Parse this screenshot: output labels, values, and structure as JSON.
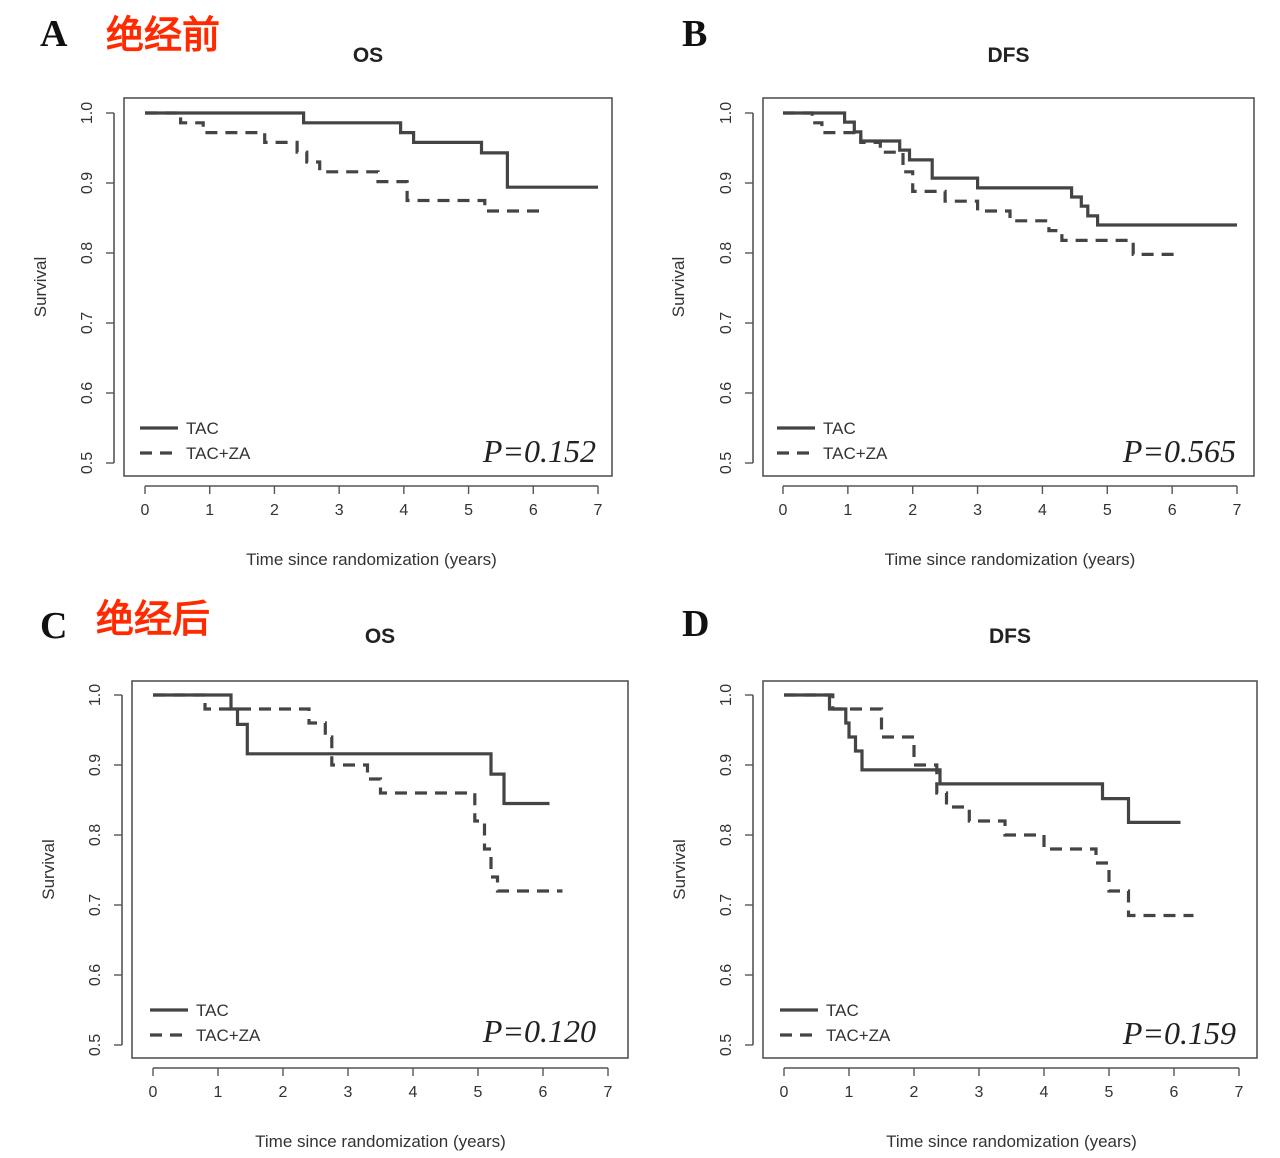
{
  "figure": {
    "group_labels": [
      {
        "text": "绝经前",
        "color": "#ff2a00"
      },
      {
        "text": "绝经后",
        "color": "#ff2a00"
      }
    ]
  },
  "chart_data": [
    {
      "panel": "A",
      "type": "line",
      "title": "OS",
      "xlabel": "Time since randomization (years)",
      "ylabel": "Survival",
      "xlim": [
        0,
        7
      ],
      "ylim": [
        0.5,
        1.0
      ],
      "xticks": [
        0,
        1,
        2,
        3,
        4,
        5,
        6,
        7
      ],
      "yticks": [
        0.5,
        0.6,
        0.7,
        0.8,
        0.9,
        1.0
      ],
      "p_value": "P=0.152",
      "legend": [
        "TAC",
        "TAC+ZA"
      ],
      "legend_position": "bottom-left",
      "series": [
        {
          "name": "TAC",
          "style": "solid",
          "points": [
            [
              0,
              1.0
            ],
            [
              2.45,
              1.0
            ],
            [
              2.45,
              0.986
            ],
            [
              3.95,
              0.986
            ],
            [
              3.95,
              0.972
            ],
            [
              4.15,
              0.972
            ],
            [
              4.15,
              0.958
            ],
            [
              5.2,
              0.958
            ],
            [
              5.2,
              0.943
            ],
            [
              5.6,
              0.943
            ],
            [
              5.6,
              0.894
            ],
            [
              7.0,
              0.894
            ]
          ]
        },
        {
          "name": "TAC+ZA",
          "style": "dashed",
          "points": [
            [
              0,
              1.0
            ],
            [
              0.55,
              1.0
            ],
            [
              0.55,
              0.986
            ],
            [
              0.9,
              0.986
            ],
            [
              0.9,
              0.972
            ],
            [
              1.85,
              0.972
            ],
            [
              1.85,
              0.958
            ],
            [
              2.35,
              0.958
            ],
            [
              2.35,
              0.944
            ],
            [
              2.5,
              0.944
            ],
            [
              2.5,
              0.93
            ],
            [
              2.7,
              0.93
            ],
            [
              2.7,
              0.916
            ],
            [
              3.6,
              0.916
            ],
            [
              3.6,
              0.902
            ],
            [
              4.05,
              0.902
            ],
            [
              4.05,
              0.875
            ],
            [
              5.25,
              0.875
            ],
            [
              5.25,
              0.86
            ],
            [
              6.1,
              0.86
            ]
          ]
        }
      ]
    },
    {
      "panel": "B",
      "type": "line",
      "title": "DFS",
      "xlabel": "Time since randomization (years)",
      "ylabel": "Survival",
      "xlim": [
        0,
        7
      ],
      "ylim": [
        0.5,
        1.0
      ],
      "xticks": [
        0,
        1,
        2,
        3,
        4,
        5,
        6,
        7
      ],
      "yticks": [
        0.5,
        0.6,
        0.7,
        0.8,
        0.9,
        1.0
      ],
      "p_value": "P=0.565",
      "legend": [
        "TAC",
        "TAC+ZA"
      ],
      "legend_position": "bottom-left",
      "series": [
        {
          "name": "TAC",
          "style": "solid",
          "points": [
            [
              0,
              1.0
            ],
            [
              0.95,
              1.0
            ],
            [
              0.95,
              0.987
            ],
            [
              1.1,
              0.987
            ],
            [
              1.1,
              0.973
            ],
            [
              1.2,
              0.973
            ],
            [
              1.2,
              0.96
            ],
            [
              1.8,
              0.96
            ],
            [
              1.8,
              0.947
            ],
            [
              1.95,
              0.947
            ],
            [
              1.95,
              0.933
            ],
            [
              2.3,
              0.933
            ],
            [
              2.3,
              0.907
            ],
            [
              3.0,
              0.907
            ],
            [
              3.0,
              0.893
            ],
            [
              4.45,
              0.893
            ],
            [
              4.45,
              0.88
            ],
            [
              4.6,
              0.88
            ],
            [
              4.6,
              0.867
            ],
            [
              4.7,
              0.867
            ],
            [
              4.7,
              0.853
            ],
            [
              4.85,
              0.853
            ],
            [
              4.85,
              0.84
            ],
            [
              7.0,
              0.84
            ]
          ]
        },
        {
          "name": "TAC+ZA",
          "style": "dashed",
          "points": [
            [
              0,
              1.0
            ],
            [
              0.45,
              1.0
            ],
            [
              0.45,
              0.986
            ],
            [
              0.6,
              0.986
            ],
            [
              0.6,
              0.972
            ],
            [
              1.2,
              0.972
            ],
            [
              1.2,
              0.958
            ],
            [
              1.5,
              0.958
            ],
            [
              1.5,
              0.944
            ],
            [
              1.85,
              0.944
            ],
            [
              1.85,
              0.916
            ],
            [
              2.0,
              0.916
            ],
            [
              2.0,
              0.888
            ],
            [
              2.5,
              0.888
            ],
            [
              2.5,
              0.874
            ],
            [
              3.0,
              0.874
            ],
            [
              3.0,
              0.86
            ],
            [
              3.5,
              0.86
            ],
            [
              3.5,
              0.846
            ],
            [
              4.1,
              0.846
            ],
            [
              4.1,
              0.832
            ],
            [
              4.3,
              0.832
            ],
            [
              4.3,
              0.818
            ],
            [
              5.4,
              0.818
            ],
            [
              5.4,
              0.798
            ],
            [
              6.1,
              0.798
            ]
          ]
        }
      ]
    },
    {
      "panel": "C",
      "type": "line",
      "title": "OS",
      "xlabel": "Time since randomization (years)",
      "ylabel": "Survival",
      "xlim": [
        0,
        7
      ],
      "ylim": [
        0.5,
        1.0
      ],
      "xticks": [
        0,
        1,
        2,
        3,
        4,
        5,
        6,
        7
      ],
      "yticks": [
        0.5,
        0.6,
        0.7,
        0.8,
        0.9,
        1.0
      ],
      "p_value": "P=0.120",
      "legend": [
        "TAC",
        "TAC+ZA"
      ],
      "legend_position": "bottom-left",
      "series": [
        {
          "name": "TAC",
          "style": "solid",
          "points": [
            [
              0,
              1.0
            ],
            [
              1.2,
              1.0
            ],
            [
              1.2,
              0.98
            ],
            [
              1.3,
              0.98
            ],
            [
              1.3,
              0.958
            ],
            [
              1.45,
              0.958
            ],
            [
              1.45,
              0.916
            ],
            [
              5.2,
              0.916
            ],
            [
              5.2,
              0.887
            ],
            [
              5.4,
              0.887
            ],
            [
              5.4,
              0.845
            ],
            [
              6.1,
              0.845
            ]
          ]
        },
        {
          "name": "TAC+ZA",
          "style": "dashed",
          "points": [
            [
              0,
              1.0
            ],
            [
              0.8,
              1.0
            ],
            [
              0.8,
              0.98
            ],
            [
              2.4,
              0.98
            ],
            [
              2.4,
              0.96
            ],
            [
              2.65,
              0.96
            ],
            [
              2.65,
              0.94
            ],
            [
              2.75,
              0.94
            ],
            [
              2.75,
              0.9
            ],
            [
              3.3,
              0.9
            ],
            [
              3.3,
              0.88
            ],
            [
              3.5,
              0.88
            ],
            [
              3.5,
              0.86
            ],
            [
              4.95,
              0.86
            ],
            [
              4.95,
              0.82
            ],
            [
              5.1,
              0.82
            ],
            [
              5.1,
              0.78
            ],
            [
              5.2,
              0.78
            ],
            [
              5.2,
              0.74
            ],
            [
              5.3,
              0.74
            ],
            [
              5.3,
              0.72
            ],
            [
              6.3,
              0.72
            ]
          ]
        }
      ]
    },
    {
      "panel": "D",
      "type": "line",
      "title": "DFS",
      "xlabel": "Time since randomization (years)",
      "ylabel": "Survival",
      "xlim": [
        0,
        7
      ],
      "ylim": [
        0.5,
        1.0
      ],
      "xticks": [
        0,
        1,
        2,
        3,
        4,
        5,
        6,
        7
      ],
      "yticks": [
        0.5,
        0.6,
        0.7,
        0.8,
        0.9,
        1.0
      ],
      "p_value": "P=0.159",
      "legend": [
        "TAC",
        "TAC+ZA"
      ],
      "legend_position": "bottom-left",
      "series": [
        {
          "name": "TAC",
          "style": "solid",
          "points": [
            [
              0,
              1.0
            ],
            [
              0.7,
              1.0
            ],
            [
              0.7,
              0.98
            ],
            [
              0.95,
              0.98
            ],
            [
              0.95,
              0.96
            ],
            [
              1.0,
              0.96
            ],
            [
              1.0,
              0.94
            ],
            [
              1.1,
              0.94
            ],
            [
              1.1,
              0.92
            ],
            [
              1.2,
              0.92
            ],
            [
              1.2,
              0.893
            ],
            [
              2.4,
              0.893
            ],
            [
              2.4,
              0.873
            ],
            [
              4.9,
              0.873
            ],
            [
              4.9,
              0.852
            ],
            [
              5.3,
              0.852
            ],
            [
              5.3,
              0.818
            ],
            [
              6.1,
              0.818
            ]
          ]
        },
        {
          "name": "TAC+ZA",
          "style": "dashed",
          "points": [
            [
              0,
              1.0
            ],
            [
              0.75,
              1.0
            ],
            [
              0.75,
              0.98
            ],
            [
              1.5,
              0.98
            ],
            [
              1.5,
              0.94
            ],
            [
              2.0,
              0.94
            ],
            [
              2.0,
              0.9
            ],
            [
              2.35,
              0.9
            ],
            [
              2.35,
              0.86
            ],
            [
              2.5,
              0.86
            ],
            [
              2.5,
              0.84
            ],
            [
              2.85,
              0.84
            ],
            [
              2.85,
              0.82
            ],
            [
              3.4,
              0.82
            ],
            [
              3.4,
              0.8
            ],
            [
              4.0,
              0.8
            ],
            [
              4.0,
              0.78
            ],
            [
              4.8,
              0.78
            ],
            [
              4.8,
              0.76
            ],
            [
              5.0,
              0.76
            ],
            [
              5.0,
              0.72
            ],
            [
              5.3,
              0.72
            ],
            [
              5.3,
              0.685
            ],
            [
              6.3,
              0.685
            ]
          ]
        }
      ]
    }
  ]
}
